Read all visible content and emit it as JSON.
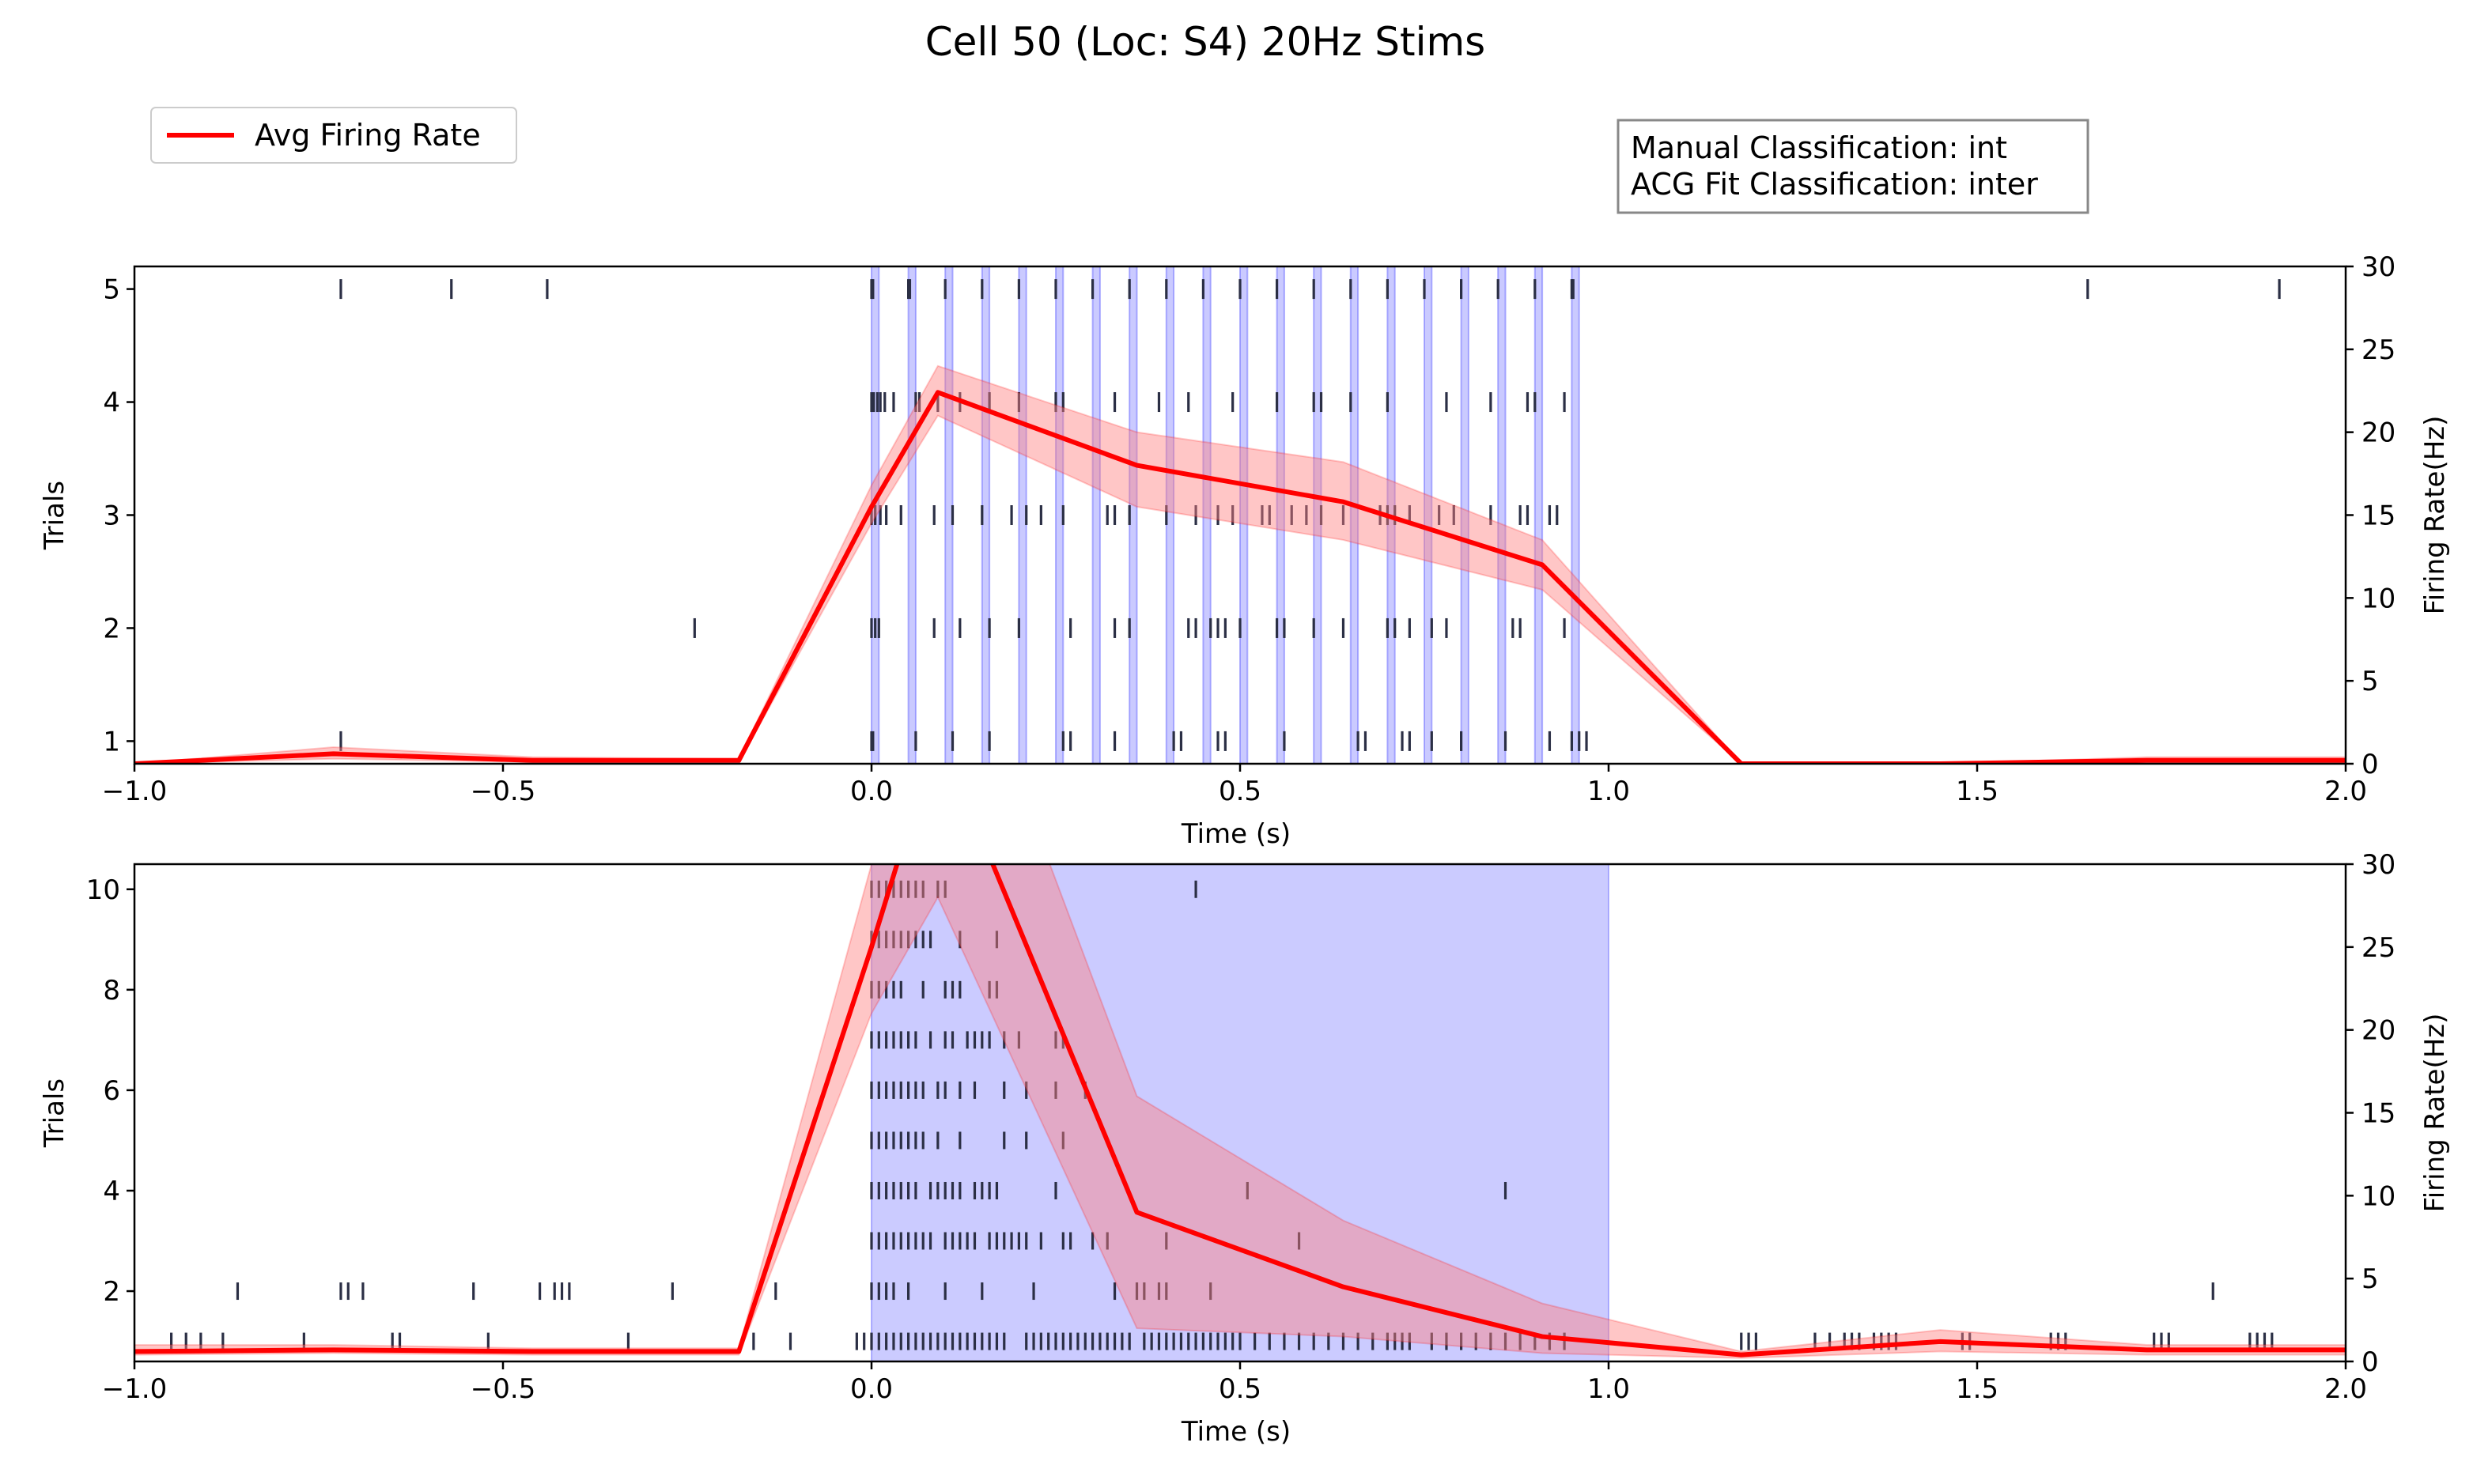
{
  "figure": {
    "title": "Cell 50 (Loc: S4) 20Hz Stims",
    "legend_label": "Avg Firing Rate",
    "classification_lines": [
      "Manual Classification: int",
      "ACG Fit Classification: inter"
    ]
  },
  "colors": {
    "rate_line": "#ff0000",
    "rate_band": "#ff8080",
    "stim": "#6666ff",
    "raster": "#2b2f45",
    "axes": "#000000"
  },
  "chart_data": [
    {
      "type": "line",
      "panel": "top",
      "xlabel": "Time (s)",
      "ylabel_left": "Trials",
      "ylabel_right": "Firing Rate(Hz)",
      "xlim": [
        -1.0,
        2.0
      ],
      "ylim_left": [
        0.8,
        5.2
      ],
      "ylim_right": [
        0,
        30
      ],
      "xticks": [
        -1.0,
        -0.5,
        0.0,
        0.5,
        1.0,
        1.5,
        2.0
      ],
      "xtick_labels": [
        "−1.0",
        "−0.5",
        "0.0",
        "0.5",
        "1.0",
        "1.5",
        "2.0"
      ],
      "yticks_left": [
        1,
        2,
        3,
        4,
        5
      ],
      "ytick_labels_left": [
        "1",
        "2",
        "3",
        "4",
        "5"
      ],
      "yticks_right": [
        0,
        5,
        10,
        15,
        20,
        25,
        30
      ],
      "ytick_labels_right": [
        "0",
        "5",
        "10",
        "15",
        "20",
        "25",
        "30"
      ],
      "stim_pulses": {
        "start": 0.0,
        "period": 0.05,
        "count": 20,
        "width": 0.01
      },
      "series": [
        {
          "name": "Avg Firing Rate",
          "x": [
            -1.0,
            -0.73,
            -0.46,
            -0.18,
            0.0,
            0.09,
            0.36,
            0.64,
            0.91,
            1.18,
            1.45,
            1.73,
            2.0
          ],
          "y": [
            0.0,
            0.6,
            0.2,
            0.2,
            15.5,
            22.4,
            18.0,
            15.8,
            12.0,
            0.0,
            0.0,
            0.2,
            0.2
          ],
          "y_lower": [
            0.0,
            0.3,
            0.1,
            0.1,
            14.5,
            21.0,
            15.5,
            13.5,
            10.5,
            0.0,
            0.0,
            0.1,
            0.1
          ],
          "y_upper": [
            0.0,
            1.0,
            0.4,
            0.3,
            16.8,
            24.0,
            20.0,
            18.2,
            13.5,
            0.0,
            0.0,
            0.4,
            0.4
          ]
        }
      ],
      "raster": [
        {
          "trial": 1,
          "times": [
            -0.72,
            0.0,
            0.002,
            0.06,
            0.11,
            0.16,
            0.26,
            0.27,
            0.33,
            0.41,
            0.42,
            0.47,
            0.48,
            0.56,
            0.66,
            0.67,
            0.72,
            0.73,
            0.76,
            0.8,
            0.86,
            0.92,
            0.95,
            0.96,
            0.97
          ]
        },
        {
          "trial": 2,
          "times": [
            -0.24,
            0.0,
            0.005,
            0.01,
            0.085,
            0.12,
            0.16,
            0.2,
            0.27,
            0.33,
            0.35,
            0.43,
            0.44,
            0.46,
            0.47,
            0.48,
            0.5,
            0.55,
            0.56,
            0.6,
            0.64,
            0.7,
            0.71,
            0.73,
            0.76,
            0.78,
            0.87,
            0.88,
            0.94
          ]
        },
        {
          "trial": 3,
          "times": [
            0.0,
            0.005,
            0.012,
            0.02,
            0.04,
            0.085,
            0.11,
            0.15,
            0.19,
            0.21,
            0.23,
            0.26,
            0.32,
            0.33,
            0.35,
            0.4,
            0.44,
            0.47,
            0.49,
            0.53,
            0.54,
            0.57,
            0.59,
            0.61,
            0.64,
            0.69,
            0.7,
            0.71,
            0.73,
            0.77,
            0.79,
            0.84,
            0.88,
            0.89,
            0.92,
            0.93
          ]
        },
        {
          "trial": 4,
          "times": [
            0.0,
            0.003,
            0.008,
            0.012,
            0.018,
            0.03,
            0.06,
            0.065,
            0.09,
            0.12,
            0.16,
            0.2,
            0.25,
            0.26,
            0.33,
            0.39,
            0.43,
            0.49,
            0.55,
            0.6,
            0.61,
            0.65,
            0.7,
            0.78,
            0.84,
            0.89,
            0.9,
            0.94
          ]
        },
        {
          "trial": 5,
          "times": [
            -0.72,
            -0.57,
            -0.44,
            0.0,
            0.002,
            0.05,
            0.052,
            0.1,
            0.15,
            0.2,
            0.25,
            0.3,
            0.35,
            0.4,
            0.45,
            0.5,
            0.55,
            0.6,
            0.65,
            0.7,
            0.75,
            0.8,
            0.85,
            0.9,
            0.95,
            0.952,
            1.65,
            1.91
          ]
        }
      ]
    },
    {
      "type": "line",
      "panel": "bottom",
      "xlabel": "Time (s)",
      "ylabel_left": "Trials",
      "ylabel_right": "Firing Rate(Hz)",
      "xlim": [
        -1.0,
        2.0
      ],
      "ylim_left": [
        0.6,
        10.5
      ],
      "ylim_right": [
        0,
        30
      ],
      "xticks": [
        -1.0,
        -0.5,
        0.0,
        0.5,
        1.0,
        1.5,
        2.0
      ],
      "xtick_labels": [
        "−1.0",
        "−0.5",
        "0.0",
        "0.5",
        "1.0",
        "1.5",
        "2.0"
      ],
      "yticks_left": [
        2,
        4,
        6,
        8,
        10
      ],
      "ytick_labels_left": [
        "2",
        "4",
        "6",
        "8",
        "10"
      ],
      "yticks_right": [
        0,
        5,
        10,
        15,
        20,
        25,
        30
      ],
      "ytick_labels_right": [
        "0",
        "5",
        "10",
        "15",
        "20",
        "25",
        "30"
      ],
      "stim_block": [
        0.0,
        1.0
      ],
      "series": [
        {
          "name": "Avg Firing Rate",
          "x": [
            -1.0,
            -0.73,
            -0.46,
            -0.18,
            0.0,
            0.09,
            0.36,
            0.64,
            0.91,
            1.18,
            1.45,
            1.73,
            2.0
          ],
          "y": [
            0.6,
            0.7,
            0.6,
            0.6,
            25.0,
            38.0,
            9.0,
            4.5,
            1.5,
            0.4,
            1.2,
            0.7,
            0.7
          ],
          "y_lower": [
            0.4,
            0.5,
            0.4,
            0.4,
            21.0,
            28.0,
            2.0,
            1.5,
            0.5,
            0.2,
            0.6,
            0.4,
            0.4
          ],
          "y_upper": [
            1.0,
            1.0,
            0.8,
            0.8,
            30.0,
            48.0,
            16.0,
            8.5,
            3.5,
            0.6,
            1.9,
            1.0,
            1.0
          ]
        }
      ],
      "raster": [
        {
          "trial": 1,
          "times": [
            -0.95,
            -0.93,
            -0.91,
            -0.88,
            -0.77,
            -0.65,
            -0.64,
            -0.52,
            -0.33,
            -0.16,
            -0.11,
            -0.02,
            -0.01,
            0.0,
            0.01,
            0.02,
            0.03,
            0.04,
            0.05,
            0.06,
            0.07,
            0.08,
            0.09,
            0.1,
            0.11,
            0.12,
            0.13,
            0.14,
            0.15,
            0.16,
            0.17,
            0.18,
            0.21,
            0.22,
            0.23,
            0.24,
            0.25,
            0.26,
            0.27,
            0.28,
            0.29,
            0.3,
            0.31,
            0.32,
            0.33,
            0.34,
            0.35,
            0.37,
            0.38,
            0.39,
            0.4,
            0.41,
            0.42,
            0.43,
            0.44,
            0.45,
            0.46,
            0.47,
            0.48,
            0.49,
            0.5,
            0.52,
            0.54,
            0.56,
            0.58,
            0.6,
            0.62,
            0.64,
            0.66,
            0.68,
            0.7,
            0.71,
            0.72,
            0.73,
            0.76,
            0.78,
            0.8,
            0.82,
            0.84,
            0.86,
            0.88,
            0.9,
            0.92,
            0.94,
            1.18,
            1.19,
            1.2,
            1.28,
            1.3,
            1.32,
            1.33,
            1.34,
            1.36,
            1.37,
            1.38,
            1.39,
            1.48,
            1.49,
            1.6,
            1.61,
            1.62,
            1.74,
            1.75,
            1.76,
            1.87,
            1.88,
            1.89,
            1.9
          ]
        },
        {
          "trial": 2,
          "times": [
            -0.86,
            -0.72,
            -0.71,
            -0.69,
            -0.54,
            -0.45,
            -0.43,
            -0.42,
            -0.41,
            -0.27,
            -0.13,
            0.0,
            0.01,
            0.02,
            0.03,
            0.05,
            0.1,
            0.15,
            0.22,
            0.33,
            0.36,
            0.37,
            0.39,
            0.4,
            0.46,
            1.82
          ]
        },
        {
          "trial": 3,
          "times": [
            0.0,
            0.01,
            0.02,
            0.03,
            0.04,
            0.05,
            0.06,
            0.07,
            0.08,
            0.1,
            0.11,
            0.12,
            0.13,
            0.14,
            0.16,
            0.17,
            0.18,
            0.19,
            0.2,
            0.21,
            0.23,
            0.26,
            0.27,
            0.3,
            0.32,
            0.4,
            0.58
          ]
        },
        {
          "trial": 4,
          "times": [
            0.0,
            0.01,
            0.02,
            0.03,
            0.04,
            0.05,
            0.06,
            0.08,
            0.09,
            0.1,
            0.11,
            0.12,
            0.14,
            0.15,
            0.16,
            0.17,
            0.25,
            0.51,
            0.86
          ]
        },
        {
          "trial": 5,
          "times": [
            0.0,
            0.01,
            0.02,
            0.03,
            0.04,
            0.05,
            0.06,
            0.07,
            0.09,
            0.12,
            0.18,
            0.21,
            0.26
          ]
        },
        {
          "trial": 6,
          "times": [
            0.0,
            0.01,
            0.02,
            0.03,
            0.04,
            0.05,
            0.06,
            0.07,
            0.09,
            0.1,
            0.12,
            0.14,
            0.18,
            0.21,
            0.25,
            0.29
          ]
        },
        {
          "trial": 7,
          "times": [
            0.0,
            0.01,
            0.02,
            0.03,
            0.04,
            0.05,
            0.06,
            0.08,
            0.1,
            0.11,
            0.13,
            0.14,
            0.15,
            0.16,
            0.18,
            0.2,
            0.25,
            0.26
          ]
        },
        {
          "trial": 8,
          "times": [
            0.0,
            0.01,
            0.02,
            0.03,
            0.04,
            0.07,
            0.1,
            0.11,
            0.12,
            0.16,
            0.17
          ]
        },
        {
          "trial": 9,
          "times": [
            0.0,
            0.01,
            0.02,
            0.03,
            0.04,
            0.05,
            0.06,
            0.07,
            0.08,
            0.12,
            0.17
          ]
        },
        {
          "trial": 10,
          "times": [
            0.0,
            0.01,
            0.02,
            0.03,
            0.04,
            0.05,
            0.06,
            0.07,
            0.09,
            0.1,
            0.44
          ]
        }
      ]
    }
  ]
}
